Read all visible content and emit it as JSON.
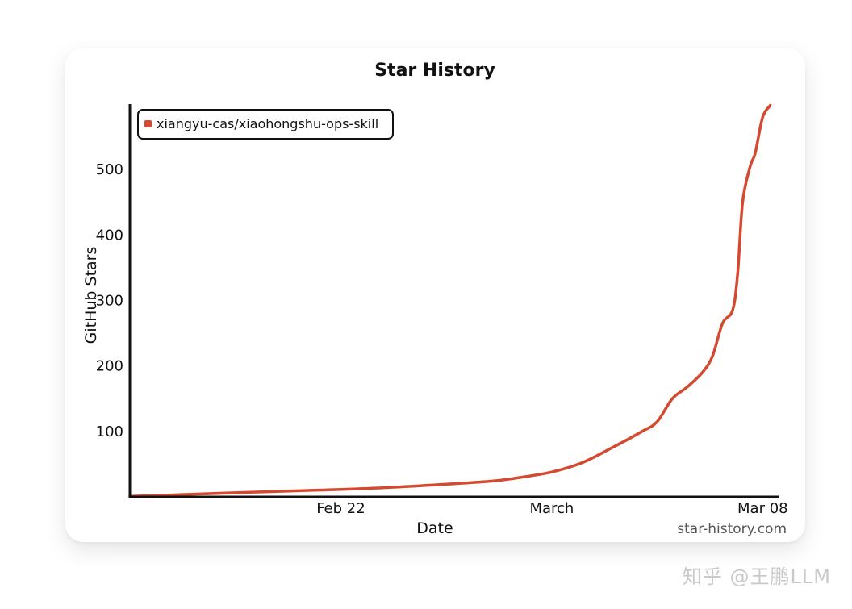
{
  "chart_data": {
    "type": "line",
    "title": "Star History",
    "xlabel": "Date",
    "ylabel": "GitHub Stars",
    "x_ticks": [
      "Feb 22",
      "March",
      "Mar 08"
    ],
    "y_ticks": [
      100,
      200,
      300,
      400,
      500
    ],
    "ylim": [
      0,
      600
    ],
    "legend_position": "top-left",
    "series": [
      {
        "name": "xiangyu-cas/xiaohongshu-ops-skill",
        "color": "#d34a30",
        "points": [
          [
            "2026-02-15",
            1
          ],
          [
            "2026-02-17",
            4
          ],
          [
            "2026-02-19",
            7
          ],
          [
            "2026-02-21",
            10
          ],
          [
            "2026-02-23",
            13
          ],
          [
            "2026-02-25",
            18
          ],
          [
            "2026-02-27",
            24
          ],
          [
            "2026-02-28",
            30
          ],
          [
            "2026-03-01",
            38
          ],
          [
            "2026-03-02",
            52
          ],
          [
            "2026-03-03",
            75
          ],
          [
            "2026-03-04",
            100
          ],
          [
            "2026-03-04T12:00",
            115
          ],
          [
            "2026-03-05",
            150
          ],
          [
            "2026-03-05T12:00",
            168
          ],
          [
            "2026-03-06",
            190
          ],
          [
            "2026-03-06T08:00",
            215
          ],
          [
            "2026-03-06T16:00",
            265
          ],
          [
            "2026-03-07",
            285
          ],
          [
            "2026-03-07T04:00",
            340
          ],
          [
            "2026-03-07T08:00",
            450
          ],
          [
            "2026-03-07T14:00",
            505
          ],
          [
            "2026-03-07T18:00",
            525
          ],
          [
            "2026-03-08",
            580
          ],
          [
            "2026-03-08T06:00",
            598
          ]
        ]
      }
    ]
  },
  "footer": {
    "source": "star-history.com"
  },
  "watermark": "知乎 @王鹏LLM"
}
